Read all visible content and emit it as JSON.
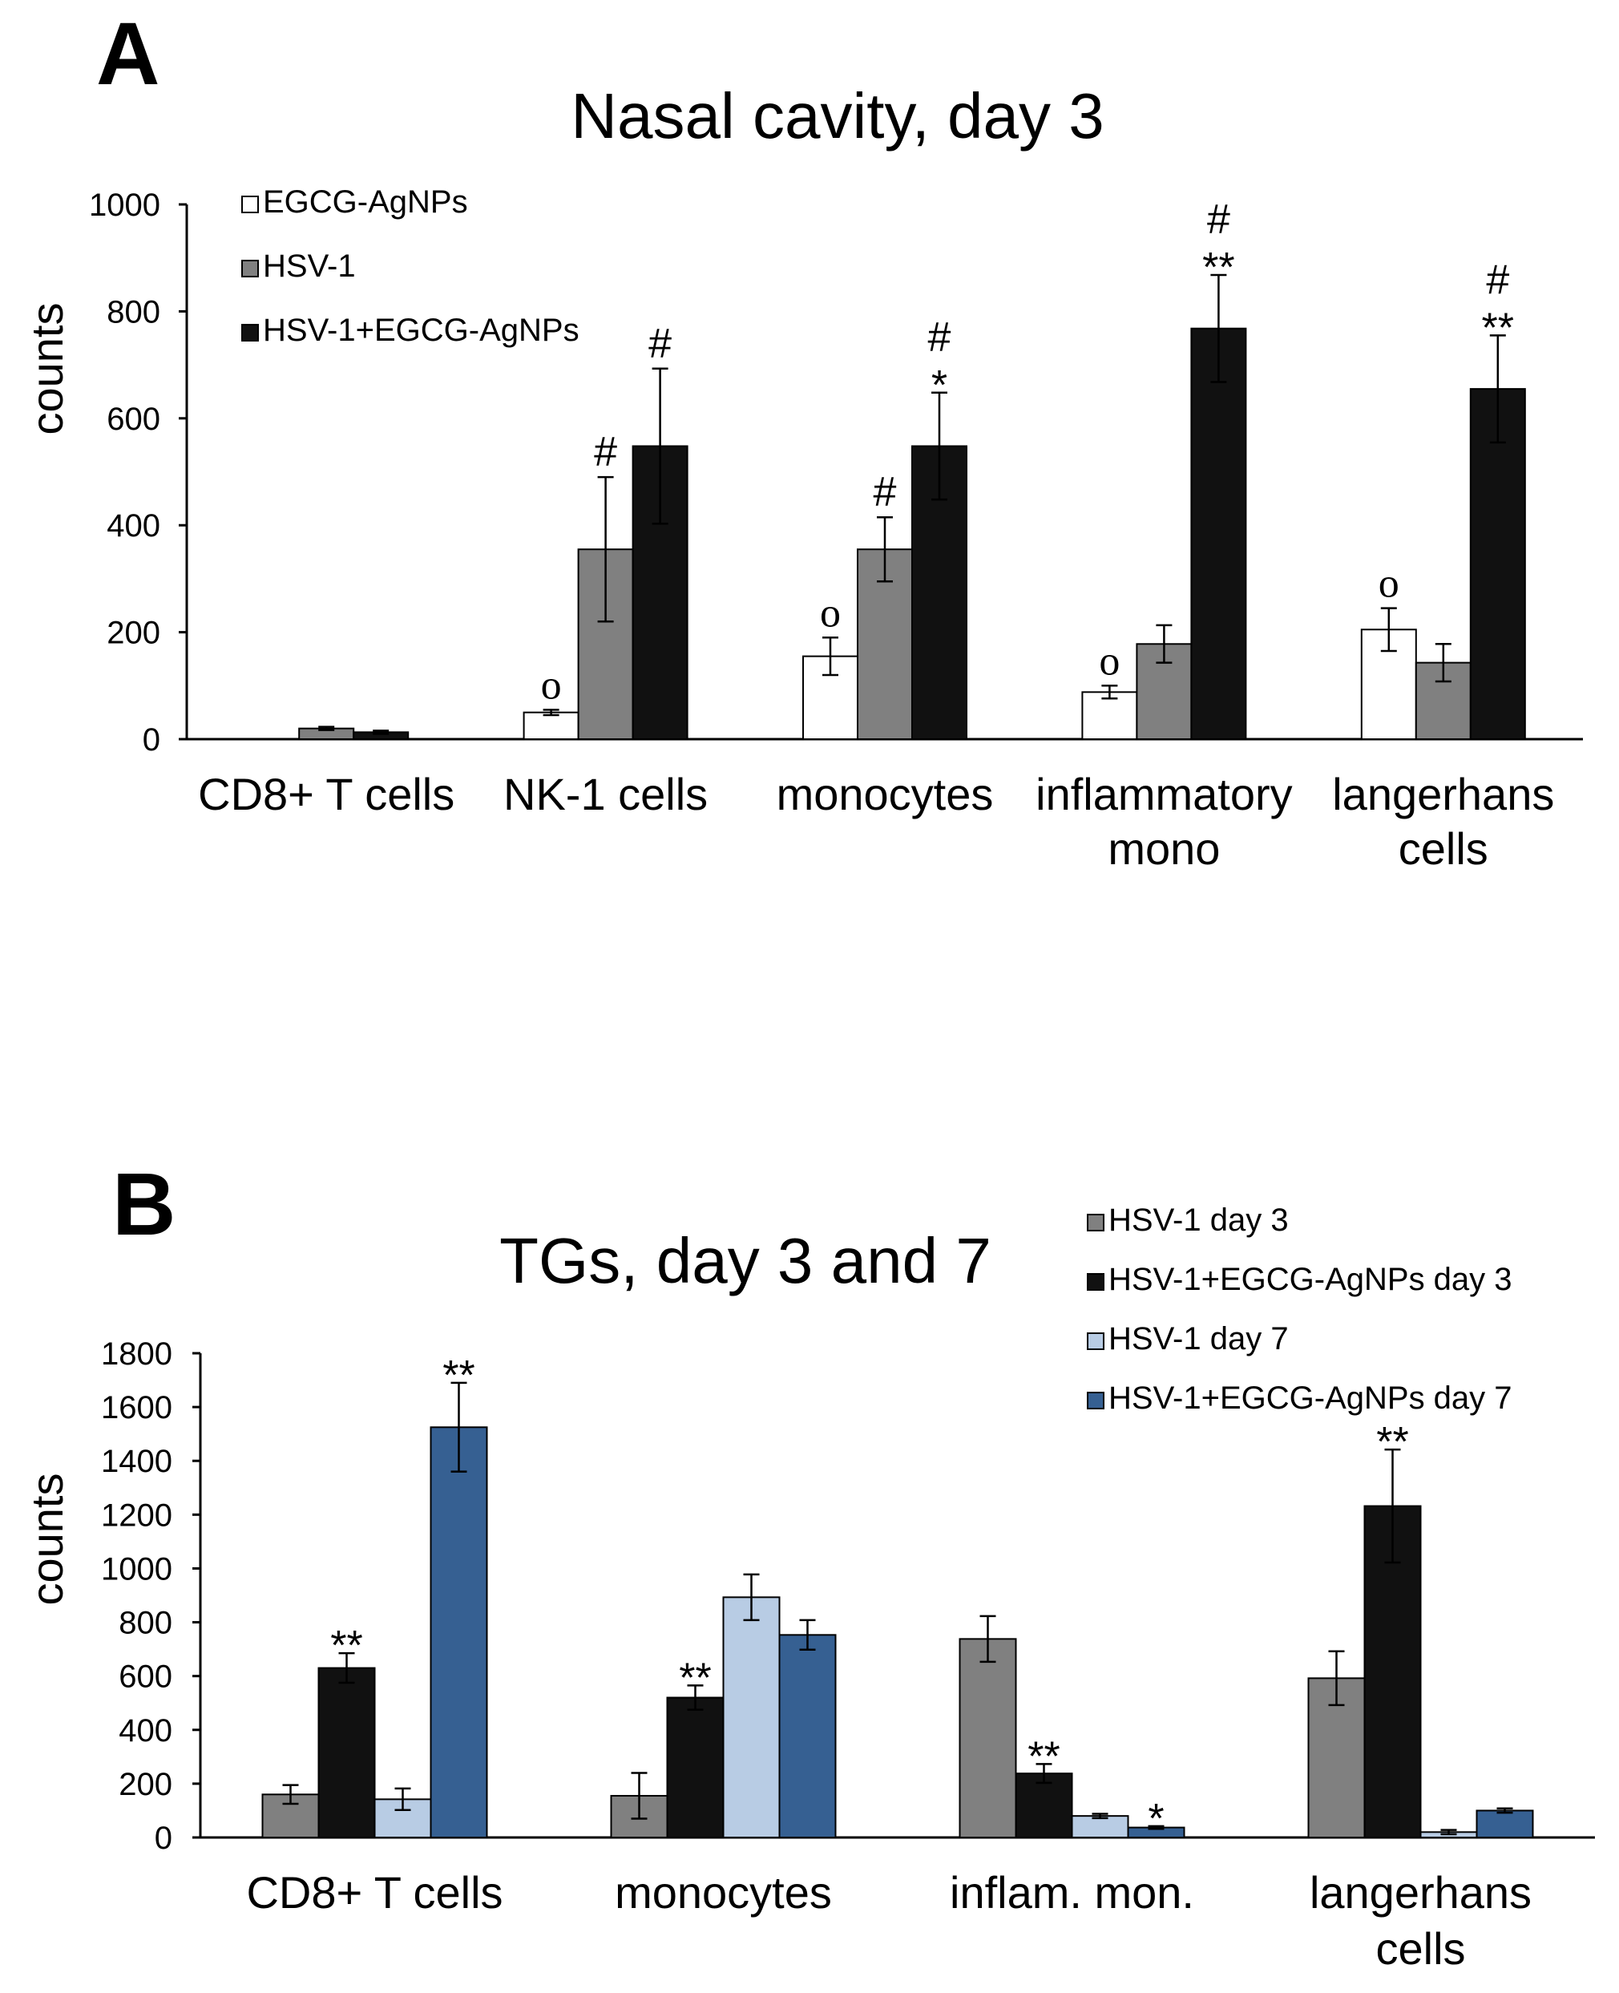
{
  "chart_data": [
    {
      "panel": "A",
      "type": "bar",
      "title": "Nasal cavity, day 3",
      "ylabel": "counts",
      "xlabel": "",
      "ylim": [
        0,
        1000
      ],
      "yticks": [
        0,
        200,
        400,
        600,
        800,
        1000
      ],
      "categories": [
        [
          "CD8+ T cells"
        ],
        [
          "NK-1 cells"
        ],
        [
          "monocytes"
        ],
        [
          "inflammatory",
          "mono"
        ],
        [
          "langerhans",
          "cells"
        ]
      ],
      "series": [
        {
          "name": "EGCG-AgNPs",
          "color": "#ffffff",
          "values": [
            0,
            50,
            155,
            88,
            205
          ],
          "errors": [
            0,
            5,
            35,
            12,
            40
          ],
          "annotations": [
            "",
            "o",
            "o",
            "o",
            "o"
          ]
        },
        {
          "name": "HSV-1",
          "color": "#808080",
          "values": [
            20,
            355,
            355,
            178,
            143
          ],
          "errors": [
            3,
            135,
            60,
            35,
            35
          ],
          "annotations": [
            "",
            "#",
            "#",
            "",
            ""
          ]
        },
        {
          "name": "HSV-1+EGCG-AgNPs",
          "color": "#111111",
          "values": [
            13,
            548,
            548,
            768,
            655
          ],
          "errors": [
            3,
            145,
            100,
            100,
            100
          ],
          "annotations": [
            "",
            "#",
            "*|#",
            "**|#",
            "**|#"
          ]
        }
      ],
      "legend_position": "top-left",
      "grid": false
    },
    {
      "panel": "B",
      "type": "bar",
      "title": "TGs, day 3 and 7",
      "ylabel": "counts",
      "xlabel": "",
      "ylim": [
        0,
        1800
      ],
      "yticks": [
        0,
        200,
        400,
        600,
        800,
        1000,
        1200,
        1400,
        1600,
        1800
      ],
      "categories": [
        [
          "CD8+ T cells"
        ],
        [
          "monocytes"
        ],
        [
          "inflam. mon."
        ],
        [
          "langerhans",
          "cells"
        ]
      ],
      "series": [
        {
          "name": "HSV-1 day 3",
          "color": "#808080",
          "values": [
            160,
            155,
            738,
            592
          ],
          "errors": [
            35,
            85,
            85,
            100
          ],
          "annotations": [
            "",
            "",
            "",
            ""
          ]
        },
        {
          "name": "HSV-1+EGCG-AgNPs day 3",
          "color": "#111111",
          "values": [
            630,
            520,
            238,
            1232
          ],
          "errors": [
            55,
            45,
            35,
            210
          ],
          "annotations": [
            "**",
            "**",
            "**",
            "**"
          ]
        },
        {
          "name": "HSV-1 day 7",
          "color": "#b8cce4",
          "values": [
            142,
            893,
            80,
            20
          ],
          "errors": [
            40,
            85,
            8,
            8
          ],
          "annotations": [
            "",
            "",
            "",
            ""
          ]
        },
        {
          "name": "HSV-1+EGCG-AgNPs day 7",
          "color": "#366092",
          "values": [
            1525,
            753,
            37,
            100
          ],
          "errors": [
            165,
            55,
            5,
            8
          ],
          "annotations": [
            "**",
            "",
            "*",
            ""
          ]
        }
      ],
      "legend_position": "top-right",
      "grid": false
    }
  ]
}
